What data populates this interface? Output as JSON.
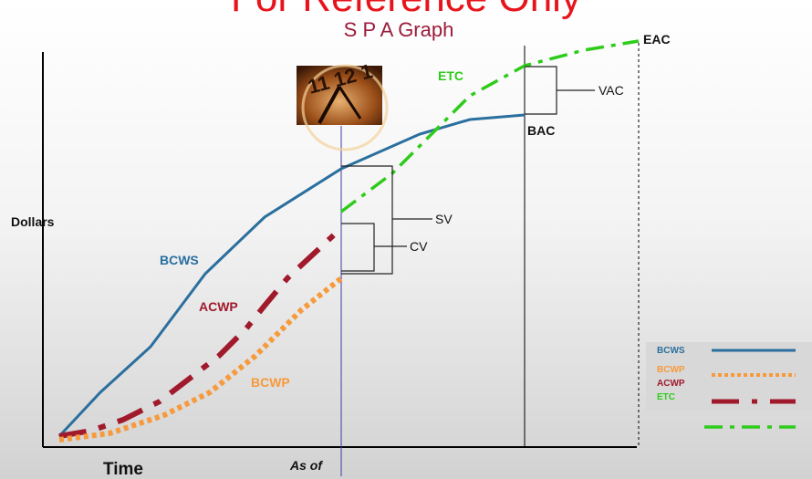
{
  "watermark": "For Reference Only",
  "title": "S P A Graph",
  "axes": {
    "y_label": "Dollars",
    "x_label": "Time",
    "as_of": "As of"
  },
  "curve_labels": {
    "bcws": "BCWS",
    "acwp": "ACWP",
    "bcwp": "BCWP",
    "etc": "ETC"
  },
  "annotations": {
    "eac": "EAC",
    "vac": "VAC",
    "bac": "BAC",
    "sv": "SV",
    "cv": "CV"
  },
  "legend": [
    "BCWS",
    "BCWP",
    "ACWP",
    "ETC"
  ]
}
